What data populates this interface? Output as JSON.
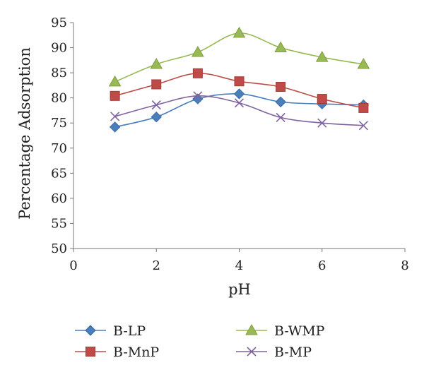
{
  "chart_data": {
    "type": "line",
    "xlabel": "pH",
    "ylabel": "Percentage Adsorption",
    "xlim": [
      0,
      8
    ],
    "ylim": [
      50,
      95
    ],
    "xticks": [
      0,
      2,
      4,
      6,
      8
    ],
    "yticks": [
      50,
      55,
      60,
      65,
      70,
      75,
      80,
      85,
      90,
      95
    ],
    "x": [
      1,
      2,
      3,
      4,
      5,
      6,
      7
    ],
    "grid": false,
    "legend_position": "bottom",
    "series": [
      {
        "name": "B-LP",
        "values": [
          74.2,
          76.2,
          79.8,
          80.8,
          79.2,
          78.8,
          78.6
        ],
        "color": "#4a7ebb",
        "marker": "diamond"
      },
      {
        "name": "B-MnP",
        "values": [
          80.4,
          82.7,
          84.9,
          83.3,
          82.2,
          79.8,
          78.0
        ],
        "color": "#be4b48",
        "marker": "square"
      },
      {
        "name": "B-WMP",
        "values": [
          83.2,
          86.7,
          89.1,
          92.9,
          90.0,
          88.1,
          86.7
        ],
        "color": "#98b954",
        "marker": "triangle"
      },
      {
        "name": "B-MP",
        "values": [
          76.3,
          78.6,
          80.4,
          79.0,
          76.1,
          75.0,
          74.5
        ],
        "color": "#7e63a0",
        "marker": "x"
      }
    ]
  }
}
